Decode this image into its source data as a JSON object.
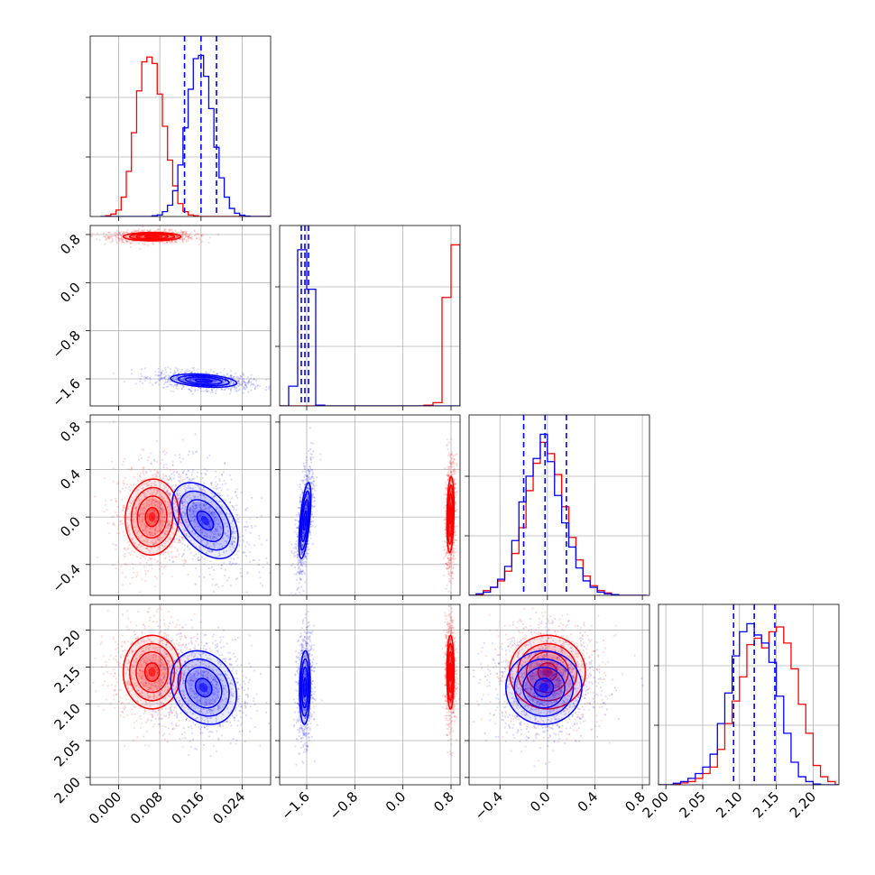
{
  "chart_data": {
    "type": "corner",
    "dims": 4,
    "grid": true,
    "colors": {
      "red": "#ff0000",
      "blue": "#0000ff",
      "grid": "#b0b0b0",
      "frame": "#000000"
    },
    "ranges": [
      [
        -0.0055,
        0.0295
      ],
      [
        -2.05,
        0.95
      ],
      [
        -0.66,
        0.86
      ],
      [
        1.99,
        2.235
      ]
    ],
    "ticks": [
      [
        0.0,
        0.008,
        0.016,
        0.024
      ],
      [
        -1.6,
        -0.8,
        0.0,
        0.8
      ],
      [
        -0.4,
        0.0,
        0.4,
        0.8
      ],
      [
        2.0,
        2.05,
        2.1,
        2.15,
        2.2
      ]
    ],
    "tick_labels": [
      [
        "0.000",
        "0.008",
        "0.016",
        "0.024"
      ],
      [
        "−1.6",
        "−0.8",
        "0.0",
        "0.8"
      ],
      [
        "−0.4",
        "0.0",
        "0.4",
        "0.8"
      ],
      [
        "2.00",
        "2.05",
        "2.10",
        "2.15",
        "2.20"
      ]
    ],
    "marginals": [
      {
        "edges": [
          -0.0035,
          -0.0025,
          -0.0015,
          -0.0005,
          0.0005,
          0.0015,
          0.0025,
          0.0035,
          0.0045,
          0.0055,
          0.0065,
          0.0075,
          0.0085,
          0.0095,
          0.0105,
          0.0115,
          0.0125,
          0.0135,
          0.0145,
          0.0155,
          0.0165,
          0.0175,
          0.0185,
          0.0195,
          0.0205,
          0.0215,
          0.0225,
          0.0235,
          0.0245,
          0.0255,
          0.0265,
          0.0275,
          0.0285,
          0.0295
        ],
        "red": [
          0.0,
          0.005,
          0.015,
          0.04,
          0.12,
          0.28,
          0.52,
          0.78,
          0.96,
          0.99,
          0.95,
          0.76,
          0.56,
          0.35,
          0.19,
          0.08,
          0.03,
          0.01,
          0.005,
          0.0,
          0.0,
          0.0,
          0.0,
          0.0,
          0.0,
          0.0,
          0.0,
          0.0,
          0.0,
          0.0,
          0.0,
          0.0,
          0.0
        ],
        "blue": [
          0.0,
          0.0,
          0.0,
          0.0,
          0.0,
          0.0,
          0.0,
          0.0,
          0.0,
          0.0,
          0.005,
          0.01,
          0.03,
          0.07,
          0.16,
          0.32,
          0.55,
          0.79,
          0.98,
          1.0,
          0.87,
          0.67,
          0.43,
          0.24,
          0.12,
          0.05,
          0.02,
          0.008,
          0.003,
          0.0,
          0.0,
          0.0,
          0.0
        ],
        "blue_quantiles": [
          0.0128,
          0.016,
          0.019
        ]
      },
      {
        "edges": [
          -2.05,
          -1.9,
          -1.75,
          -1.6,
          -1.45,
          -1.3,
          -1.15,
          -1.0,
          -0.85,
          -0.7,
          -0.55,
          -0.4,
          -0.25,
          -0.1,
          0.05,
          0.2,
          0.35,
          0.5,
          0.65,
          0.8,
          0.95
        ],
        "red": [
          0.0,
          0.0,
          0.0,
          0.0,
          0.0,
          0.0,
          0.0,
          0.0,
          0.0,
          0.0,
          0.0,
          0.0,
          0.0,
          0.0,
          0.0,
          0.0,
          0.005,
          0.02,
          0.66,
          0.98
        ],
        "blue": [
          0.0,
          0.12,
          0.95,
          0.71,
          0.005,
          0.0,
          0.0,
          0.0,
          0.0,
          0.0,
          0.0,
          0.0,
          0.0,
          0.0,
          0.0,
          0.0,
          0.0,
          0.0,
          0.0,
          0.0
        ],
        "blue_quantiles": [
          -1.69,
          -1.63,
          -1.57
        ]
      },
      {
        "edges": [
          -0.66,
          -0.6,
          -0.54,
          -0.48,
          -0.42,
          -0.36,
          -0.3,
          -0.24,
          -0.18,
          -0.12,
          -0.06,
          0.0,
          0.06,
          0.12,
          0.18,
          0.24,
          0.3,
          0.36,
          0.42,
          0.48,
          0.54,
          0.6,
          0.66,
          0.72,
          0.78,
          0.84
        ],
        "red": [
          0.0,
          0.005,
          0.03,
          0.05,
          0.09,
          0.15,
          0.26,
          0.42,
          0.65,
          0.82,
          0.95,
          0.88,
          0.75,
          0.55,
          0.36,
          0.22,
          0.12,
          0.06,
          0.03,
          0.015,
          0.005,
          0.0,
          0.0,
          0.0,
          0.0
        ],
        "blue": [
          0.0,
          0.01,
          0.02,
          0.05,
          0.1,
          0.18,
          0.34,
          0.58,
          0.74,
          0.85,
          1.0,
          0.83,
          0.62,
          0.45,
          0.3,
          0.17,
          0.09,
          0.05,
          0.02,
          0.01,
          0.005,
          0.0,
          0.0,
          0.0,
          0.0
        ],
        "blue_quantiles": [
          -0.2,
          -0.02,
          0.16
        ]
      },
      {
        "edges": [
          1.99,
          2.0,
          2.01,
          2.02,
          2.03,
          2.04,
          2.05,
          2.06,
          2.07,
          2.08,
          2.09,
          2.1,
          2.11,
          2.12,
          2.13,
          2.14,
          2.15,
          2.16,
          2.17,
          2.18,
          2.19,
          2.2,
          2.21,
          2.22,
          2.23,
          2.235
        ],
        "red": [
          0.0,
          0.0,
          0.005,
          0.012,
          0.02,
          0.04,
          0.07,
          0.11,
          0.22,
          0.38,
          0.52,
          0.67,
          0.87,
          0.91,
          0.85,
          0.95,
          0.98,
          0.88,
          0.72,
          0.5,
          0.32,
          0.12,
          0.05,
          0.02,
          0.0
        ],
        "blue": [
          0.0,
          0.0,
          0.01,
          0.02,
          0.04,
          0.07,
          0.11,
          0.19,
          0.38,
          0.57,
          0.8,
          0.95,
          1.0,
          0.93,
          0.88,
          0.76,
          0.55,
          0.32,
          0.14,
          0.05,
          0.02,
          0.005,
          0.0,
          0.0,
          0.0
        ],
        "blue_quantiles": [
          2.092,
          2.12,
          2.148
        ]
      }
    ],
    "pairs": [
      {
        "row": 1,
        "col": 0,
        "red": {
          "mean": [
            0.0065,
            0.765
          ],
          "std": [
            0.0028,
            0.035
          ],
          "rho": 0.0
        },
        "blue": {
          "mean": [
            0.0165,
            -1.63
          ],
          "std": [
            0.0032,
            0.055
          ],
          "rho": -0.35
        }
      },
      {
        "row": 2,
        "col": 0,
        "red": {
          "mean": [
            0.0065,
            0.0
          ],
          "std": [
            0.0026,
            0.16
          ],
          "rho": 0.05
        },
        "blue": {
          "mean": [
            0.0168,
            -0.03
          ],
          "std": [
            0.0032,
            0.16
          ],
          "rho": -0.45
        }
      },
      {
        "row": 2,
        "col": 1,
        "red": {
          "mean": [
            0.79,
            0.02
          ],
          "std": [
            0.03,
            0.16
          ],
          "rho": 0.2
        },
        "blue": {
          "mean": [
            -1.63,
            -0.03
          ],
          "std": [
            0.05,
            0.16
          ],
          "rho": 0.6
        }
      },
      {
        "row": 3,
        "col": 0,
        "red": {
          "mean": [
            0.0065,
            2.143
          ],
          "std": [
            0.0028,
            0.025
          ],
          "rho": 0.0
        },
        "blue": {
          "mean": [
            0.0165,
            2.122
          ],
          "std": [
            0.0032,
            0.025
          ],
          "rho": -0.2
        }
      },
      {
        "row": 3,
        "col": 1,
        "red": {
          "mean": [
            0.79,
            2.143
          ],
          "std": [
            0.03,
            0.025
          ],
          "rho": 0.0
        },
        "blue": {
          "mean": [
            -1.63,
            2.122
          ],
          "std": [
            0.045,
            0.025
          ],
          "rho": 0.1
        }
      },
      {
        "row": 3,
        "col": 2,
        "red": {
          "mean": [
            0.0,
            2.143
          ],
          "std": [
            0.16,
            0.025
          ],
          "rho": 0.0
        },
        "blue": {
          "mean": [
            -0.03,
            2.122
          ],
          "std": [
            0.16,
            0.025
          ],
          "rho": 0.0
        }
      }
    ]
  }
}
